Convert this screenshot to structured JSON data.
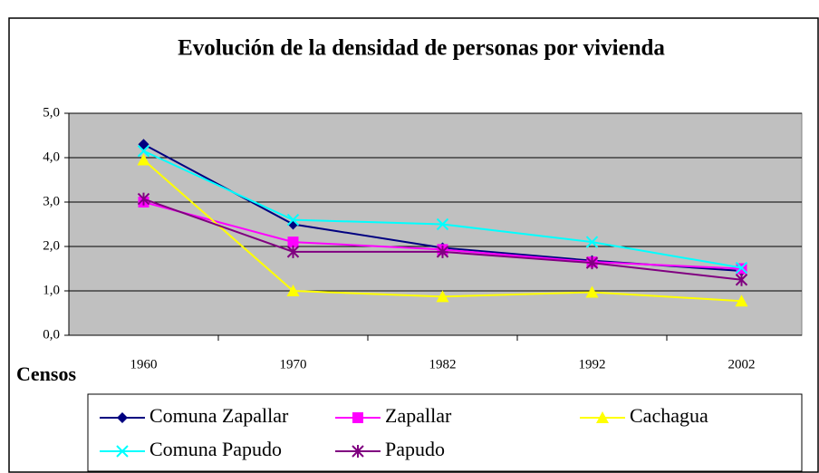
{
  "chart_data": {
    "type": "line",
    "title": "Evolución de la densidad de personas por vivienda",
    "x_label": "Censos",
    "categories": [
      "1960",
      "1970",
      "1982",
      "1992",
      "2002"
    ],
    "series": [
      {
        "name": "Comuna Zapallar",
        "color": "#000080",
        "marker": "diamond",
        "values": [
          4.3,
          2.5,
          1.97,
          1.68,
          1.45
        ]
      },
      {
        "name": "Zapallar",
        "color": "#ff00ff",
        "marker": "square",
        "values": [
          3.0,
          2.1,
          1.93,
          1.65,
          1.5
        ]
      },
      {
        "name": "Cachagua",
        "color": "#ffff00",
        "marker": "triangle",
        "values": [
          3.95,
          1.0,
          0.87,
          0.97,
          0.77
        ]
      },
      {
        "name": "Comuna Papudo",
        "color": "#00ffff",
        "marker": "x",
        "values": [
          4.15,
          2.6,
          2.5,
          2.1,
          1.52
        ]
      },
      {
        "name": "Papudo",
        "color": "#800080",
        "marker": "star",
        "values": [
          3.07,
          1.88,
          1.88,
          1.63,
          1.25
        ]
      }
    ],
    "ylim": [
      0,
      5
    ],
    "yticks": [
      {
        "value": 0,
        "label": "0,0"
      },
      {
        "value": 1,
        "label": "1,0"
      },
      {
        "value": 2,
        "label": "2,0"
      },
      {
        "value": 3,
        "label": "3,0"
      },
      {
        "value": 4,
        "label": "4,0"
      },
      {
        "value": 5,
        "label": "5,0"
      }
    ],
    "grid": true,
    "plot_background": "#c0c0c0"
  }
}
